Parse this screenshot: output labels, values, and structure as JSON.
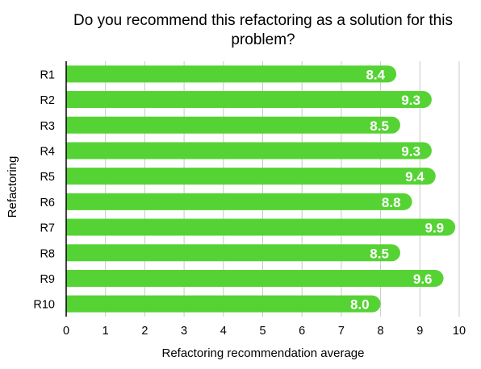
{
  "chart_data": {
    "type": "bar",
    "orientation": "horizontal",
    "title_lines": [
      "Do you recommend this refactoring as a solution for this",
      "problem?"
    ],
    "xlabel": "Refactoring recommendation average",
    "ylabel": "Refactoring",
    "categories": [
      "R1",
      "R2",
      "R3",
      "R4",
      "R5",
      "R6",
      "R7",
      "R8",
      "R9",
      "R10"
    ],
    "values": [
      8.4,
      9.3,
      8.5,
      9.3,
      9.4,
      8.8,
      9.9,
      8.5,
      9.6,
      8.0
    ],
    "value_labels": [
      "8.4",
      "9.3",
      "8.5",
      "9.3",
      "9.4",
      "8.8",
      "9.9",
      "8.5",
      "9.6",
      "8.0"
    ],
    "xlim": [
      0,
      10
    ],
    "xticks": [
      "0",
      "1",
      "2",
      "3",
      "4",
      "5",
      "6",
      "7",
      "8",
      "9",
      "10"
    ],
    "grid": "vertical",
    "bar_color": "#56d334",
    "label_color": "#ffffff"
  }
}
